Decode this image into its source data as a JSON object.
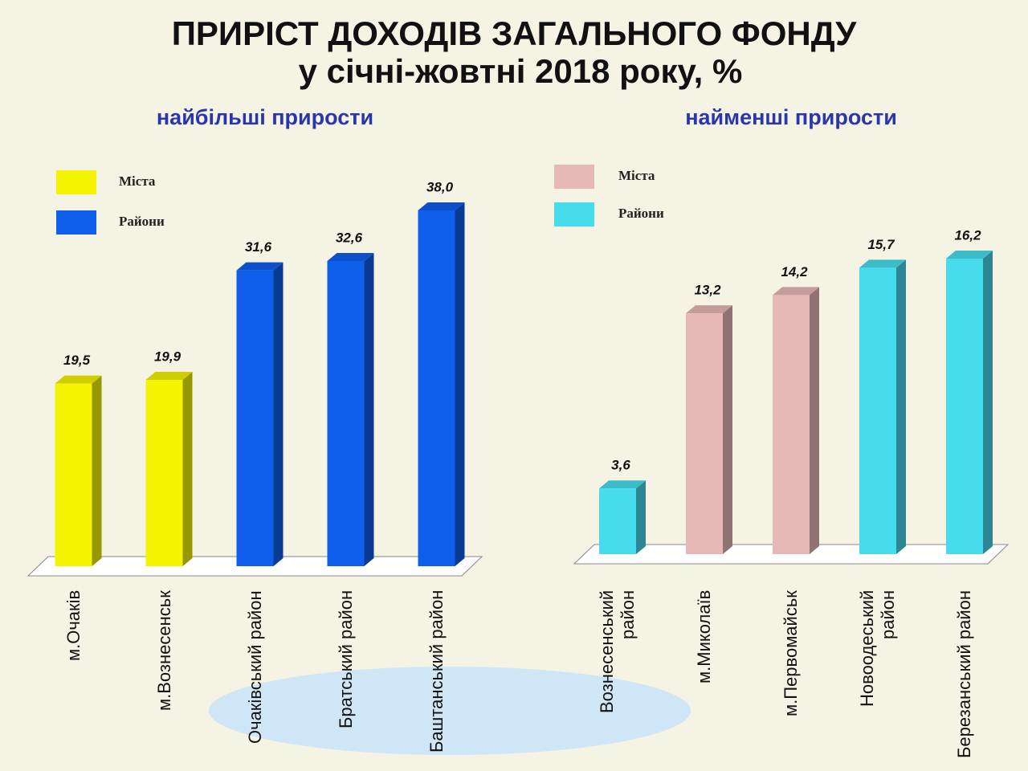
{
  "title": [
    "ПРИРІСТ ДОХОДІВ ЗАГАЛЬНОГО ФОНДУ",
    "у січні-жовтні 2018 року, %"
  ],
  "chart_data": [
    {
      "type": "bar",
      "title": "найбільші прирости",
      "categories": [
        "м.Очаків",
        "м.Вознесенськ",
        "Очаківський район",
        "Братський район",
        "Баштанський район"
      ],
      "series": [
        {
          "name": "Міста",
          "color": "#f4f400",
          "values": [
            19.5,
            19.9,
            null,
            null,
            null
          ],
          "value_labels": [
            "19,5",
            "19,9",
            null,
            null,
            null
          ]
        },
        {
          "name": "Райони",
          "color": "#0f5fec",
          "values": [
            null,
            null,
            31.6,
            32.6,
            38.0
          ],
          "value_labels": [
            null,
            null,
            "31,6",
            "32,6",
            "38,0"
          ]
        }
      ]
    },
    {
      "type": "bar",
      "title": "найменші прирости",
      "categories": [
        "Вознесенський район",
        "м.Миколаїв",
        "м.Первомайськ",
        "Новоодеський район",
        "Березанський район"
      ],
      "series": [
        {
          "name": "Міста",
          "color": "#e6b8b8",
          "values": [
            null,
            13.2,
            14.2,
            null,
            null
          ],
          "value_labels": [
            null,
            "13,2",
            "14,2",
            null,
            null
          ]
        },
        {
          "name": "Райони",
          "color": "#46dcec",
          "values": [
            3.6,
            null,
            null,
            15.7,
            16.2
          ],
          "value_labels": [
            "3,6",
            null,
            null,
            "15,7",
            "16,2"
          ]
        }
      ]
    }
  ]
}
